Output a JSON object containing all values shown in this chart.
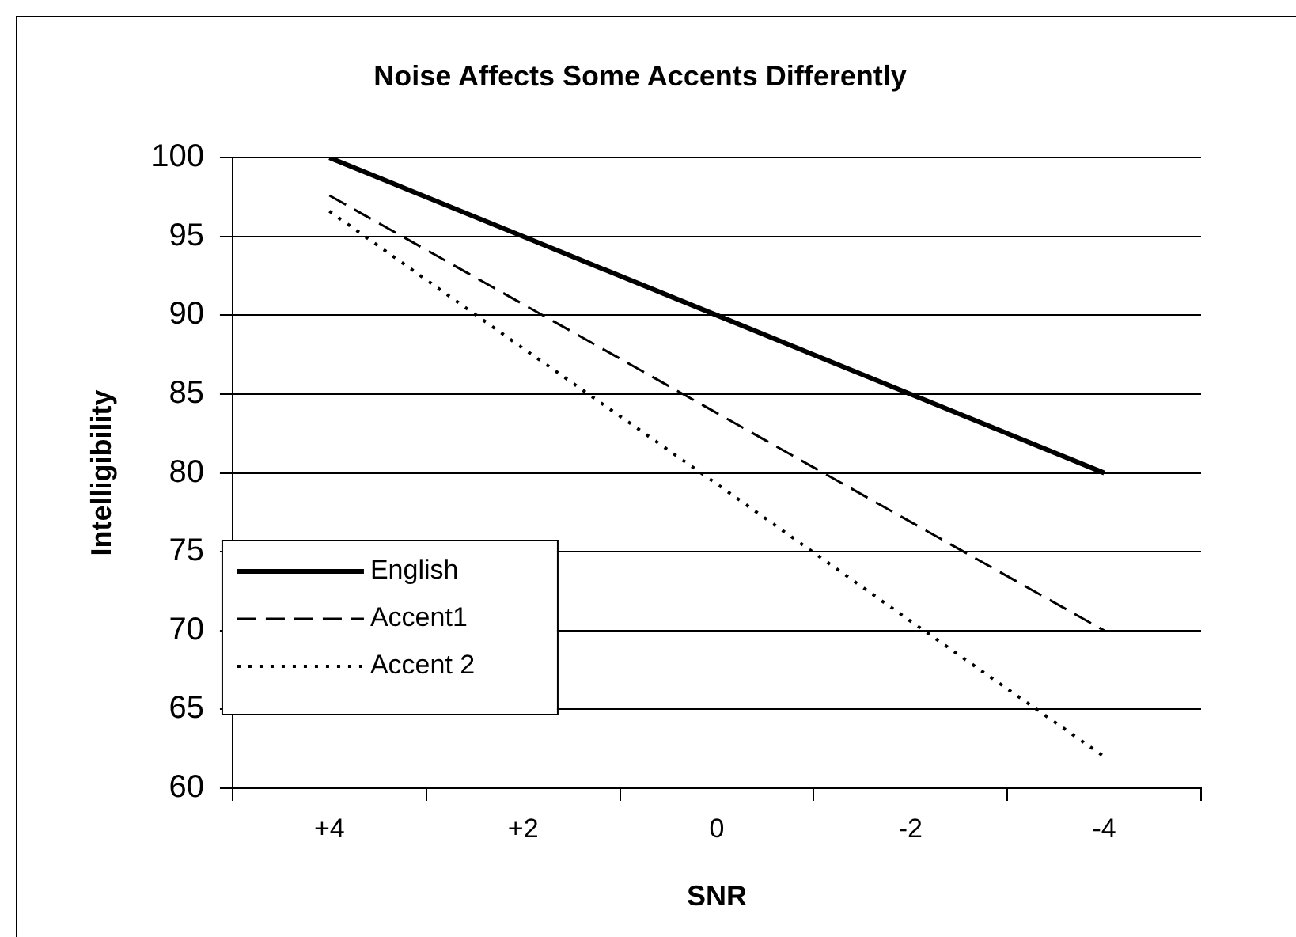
{
  "chart_data": {
    "type": "line",
    "title": "Noise Affects Some Accents Differently",
    "xlabel": "SNR",
    "ylabel": "Intelligibility",
    "categories": [
      "+4",
      "+2",
      "0",
      "-2",
      "-4"
    ],
    "series": [
      {
        "name": "English",
        "color": "#000000",
        "line_style": "solid",
        "values": [
          100,
          95,
          90,
          85,
          80
        ]
      },
      {
        "name": "Accent1",
        "color": "#000000",
        "line_style": "dashed",
        "values": [
          97.6,
          90.7,
          83.8,
          76.9,
          70
        ]
      },
      {
        "name": "Accent 2",
        "color": "#000000",
        "line_style": "dotted",
        "values": [
          96.6,
          87.9,
          79.3,
          70.6,
          62
        ]
      }
    ],
    "ylim": [
      60,
      100
    ],
    "yticks": [
      60,
      65,
      70,
      75,
      80,
      85,
      90,
      95,
      100
    ],
    "grid": "y",
    "legend": "bottom left",
    "marker": "none"
  }
}
